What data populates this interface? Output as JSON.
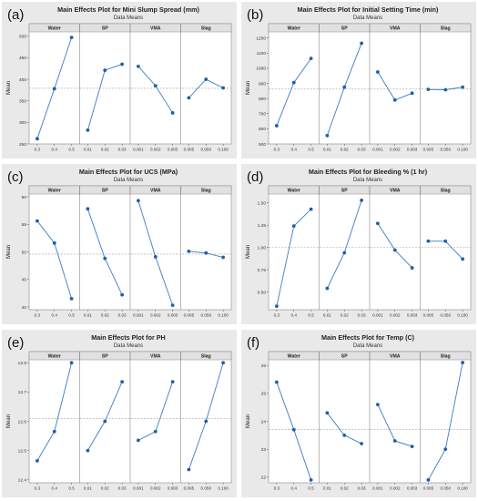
{
  "figure": {
    "background": "#e9e9e9",
    "plot_background": "#ffffff",
    "line_color": "#3b7bc4",
    "marker_color": "#1f5fa8",
    "reference_line_color": "#a0a0a0",
    "strip_background": "#e1e1e1"
  },
  "chart_data": [
    {
      "type": "line",
      "panel_letter": "(a)",
      "title": "Main Effects Plot for Mini Slump Spread (mm)",
      "subtitle": "Data Means",
      "ylabel": "Mean",
      "ylim": [
        250,
        510
      ],
      "yticks": [
        250,
        300,
        350,
        400,
        450,
        500
      ],
      "reference_mean": 379,
      "factors": [
        {
          "name": "Water",
          "levels": [
            "0.3",
            "0.4",
            "0.5"
          ],
          "values": [
            262,
            378,
            497
          ]
        },
        {
          "name": "SP",
          "levels": [
            "0.01",
            "0.02",
            "0.03"
          ],
          "values": [
            282,
            421,
            435
          ]
        },
        {
          "name": "VMA",
          "levels": [
            "0.001",
            "0.002",
            "0.003"
          ],
          "values": [
            430,
            385,
            322
          ]
        },
        {
          "name": "Slag",
          "levels": [
            "0.005",
            "0.050",
            "0.100"
          ],
          "values": [
            357,
            400,
            380
          ]
        }
      ]
    },
    {
      "type": "line",
      "panel_letter": "(b)",
      "title": "Main Effects Plot for Initial Setting Time (min)",
      "subtitle": "Data Means",
      "ylabel": "Mean",
      "ylim": [
        500,
        1240
      ],
      "yticks": [
        500,
        600,
        700,
        800,
        900,
        1000,
        1100,
        1200
      ],
      "reference_mean": 862,
      "factors": [
        {
          "name": "Water",
          "levels": [
            "0.3",
            "0.4",
            "0.5"
          ],
          "values": [
            620,
            905,
            1065
          ]
        },
        {
          "name": "SP",
          "levels": [
            "0.01",
            "0.02",
            "0.03"
          ],
          "values": [
            555,
            875,
            1165
          ]
        },
        {
          "name": "VMA",
          "levels": [
            "0.001",
            "0.002",
            "0.003"
          ],
          "values": [
            975,
            790,
            835
          ]
        },
        {
          "name": "Slag",
          "levels": [
            "0.005",
            "0.050",
            "0.100"
          ],
          "values": [
            860,
            858,
            875
          ]
        }
      ]
    },
    {
      "type": "line",
      "panel_letter": "(c)",
      "title": "Main Effects Plot for UCS (MPa)",
      "subtitle": "Data Means",
      "ylabel": "Mean",
      "ylim": [
        39.5,
        60.5
      ],
      "yticks": [
        40,
        45,
        50,
        55,
        60
      ],
      "reference_mean": 49.6,
      "factors": [
        {
          "name": "Water",
          "levels": [
            "0.3",
            "0.4",
            "0.5"
          ],
          "values": [
            55.6,
            51.6,
            41.5
          ]
        },
        {
          "name": "SP",
          "levels": [
            "0.01",
            "0.02",
            "0.03"
          ],
          "values": [
            57.8,
            48.8,
            42.2
          ]
        },
        {
          "name": "VMA",
          "levels": [
            "0.001",
            "0.002",
            "0.003"
          ],
          "values": [
            59.3,
            49.1,
            40.3
          ]
        },
        {
          "name": "Slag",
          "levels": [
            "0.005",
            "0.050",
            "0.100"
          ],
          "values": [
            50.1,
            49.8,
            49.0
          ]
        }
      ]
    },
    {
      "type": "line",
      "panel_letter": "(d)",
      "title": "Main Effects Plot for Bleeding % (1 hr)",
      "subtitle": "Data Means",
      "ylabel": "Mean",
      "ylim": [
        0.3,
        1.6
      ],
      "yticks": [
        0.5,
        0.75,
        1.0,
        1.25,
        1.5
      ],
      "tick_decimals": 2,
      "reference_mean": 1.0,
      "factors": [
        {
          "name": "Water",
          "levels": [
            "0.3",
            "0.4",
            "0.5"
          ],
          "values": [
            0.34,
            1.24,
            1.43
          ]
        },
        {
          "name": "SP",
          "levels": [
            "0.01",
            "0.02",
            "0.03"
          ],
          "values": [
            0.54,
            0.94,
            1.53
          ]
        },
        {
          "name": "VMA",
          "levels": [
            "0.001",
            "0.002",
            "0.003"
          ],
          "values": [
            1.27,
            0.97,
            0.77
          ]
        },
        {
          "name": "Slag",
          "levels": [
            "0.005",
            "0.050",
            "0.100"
          ],
          "values": [
            1.07,
            1.07,
            0.87
          ]
        }
      ]
    },
    {
      "type": "line",
      "panel_letter": "(e)",
      "title": "Main Effects Plot for PH",
      "subtitle": "Data Means",
      "ylabel": "Mean",
      "ylim": [
        12.39,
        12.81
      ],
      "yticks": [
        12.4,
        12.5,
        12.6,
        12.7,
        12.8
      ],
      "tick_decimals": 1,
      "reference_mean": 12.61,
      "factors": [
        {
          "name": "Water",
          "levels": [
            "0.3",
            "0.4",
            "0.5"
          ],
          "values": [
            12.465,
            12.565,
            12.8
          ]
        },
        {
          "name": "SP",
          "levels": [
            "0.01",
            "0.02",
            "0.03"
          ],
          "values": [
            12.5,
            12.6,
            12.735
          ]
        },
        {
          "name": "VMA",
          "levels": [
            "0.001",
            "0.002",
            "0.003"
          ],
          "values": [
            12.535,
            12.565,
            12.735
          ]
        },
        {
          "name": "Slag",
          "levels": [
            "0.005",
            "0.050",
            "0.100"
          ],
          "values": [
            12.435,
            12.6,
            12.8
          ]
        }
      ]
    },
    {
      "type": "line",
      "panel_letter": "(f)",
      "title": "Main Effects Plot for Temp (C)",
      "subtitle": "Data Means",
      "ylabel": "Mean",
      "ylim": [
        21.8,
        26.2
      ],
      "yticks": [
        22,
        23,
        24,
        25,
        26
      ],
      "reference_mean": 23.7,
      "factors": [
        {
          "name": "Water",
          "levels": [
            "0.3",
            "0.4",
            "0.5"
          ],
          "values": [
            25.4,
            23.7,
            21.9
          ]
        },
        {
          "name": "SP",
          "levels": [
            "0.01",
            "0.02",
            "0.03"
          ],
          "values": [
            24.3,
            23.5,
            23.2
          ]
        },
        {
          "name": "VMA",
          "levels": [
            "0.001",
            "0.002",
            "0.003"
          ],
          "values": [
            24.6,
            23.3,
            23.1
          ]
        },
        {
          "name": "Slag",
          "levels": [
            "0.005",
            "0.050",
            "0.100"
          ],
          "values": [
            21.9,
            23.0,
            26.1
          ]
        }
      ]
    }
  ]
}
